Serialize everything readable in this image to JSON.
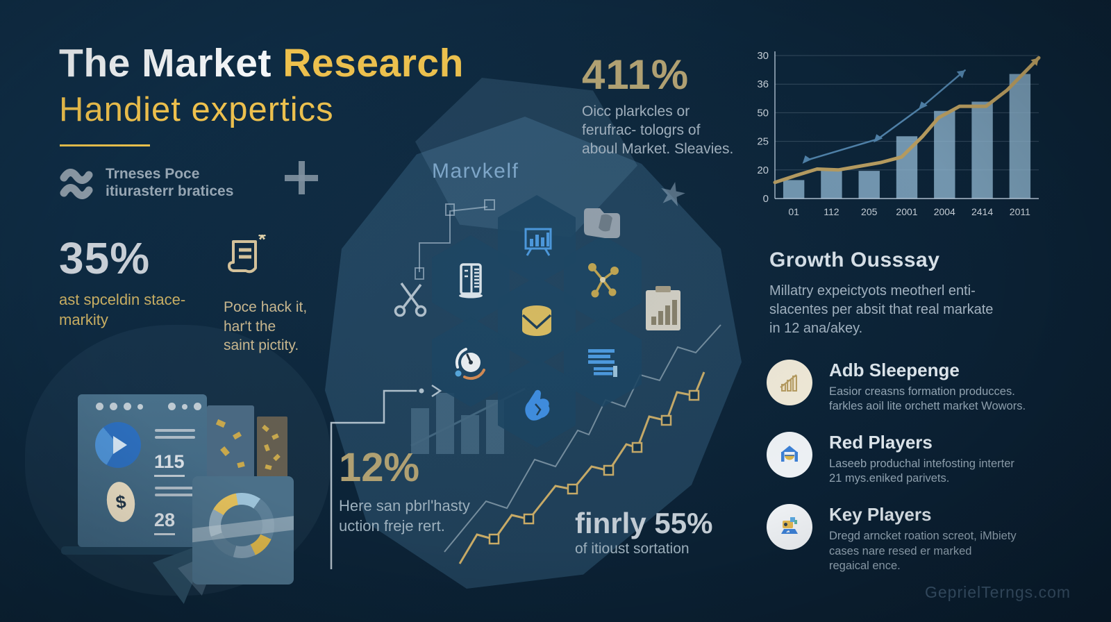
{
  "colors": {
    "background": "#0c2438",
    "accent_yellow": "#eec14d",
    "stat_gold": "#b2a171",
    "stat_silver": "#c9cfd6",
    "body_gray": "#a3b1bd",
    "bar_blue": "#8fb6cf",
    "line_gold": "#b59a5e",
    "line_blue": "#4f80a7"
  },
  "header": {
    "title_white": "The Market",
    "title_accent": "Research",
    "subtitle": "Handiet expertics",
    "brand": {
      "name_line1": "Trneses Poce",
      "name_line2": "itiurasterr bratices"
    }
  },
  "stats": {
    "pct411": {
      "value": "411%",
      "desc": "Oicc plarkcles or\nferufrac- tologrs of\naboul Market. Sleavies."
    },
    "pct35": {
      "value": "35%",
      "desc": "ast spceldin stace-\nmarkity"
    },
    "doc_note": "Poce hack it,\nhar't the\nsaint pictity.",
    "pct12": {
      "value": "12%",
      "desc": "Here san pbrl'hasty\nuction freje rert."
    },
    "pct55": {
      "value": "finrly 55%",
      "desc": "of itioust sortation"
    }
  },
  "center": {
    "label": "Marvkelf"
  },
  "growth_summary": {
    "title": "Growth Ousssay",
    "body": "Millatry expeictyots  meotherl enti-\nslacentes per absit that real markate\nin 12 ana/akey."
  },
  "players": [
    {
      "icon": "bar-growth-icon",
      "title": "Adb Sleepenge",
      "desc": "Easior creasns formation producces.\nfarkles aoil lite orchett market Wowors."
    },
    {
      "icon": "home-banner-icon",
      "title": "Red Players",
      "desc": "Laseeb produchal intefosting interter\n21 mys.eniked parivets."
    },
    {
      "icon": "projector-icon",
      "title": "Key Players",
      "desc": "Dregd arncket roation screot, iMbiety\ncases nare resed er marked\nregaical ence."
    }
  ],
  "illustration": {
    "metric1": "115",
    "metric2": "28",
    "currency": "$"
  },
  "watermark": "GeprielTerngs.com",
  "chart_data": {
    "type": "bar",
    "title": "",
    "xlabel": "",
    "ylabel": "",
    "categories": [
      "01",
      "112",
      "205",
      "2001",
      "2004",
      "2414",
      "2011"
    ],
    "y_tick_labels": [
      "30",
      "36",
      "50",
      "25",
      "20",
      "0"
    ],
    "ylim": [
      0,
      31
    ],
    "grid": true,
    "legend": null,
    "series": [
      {
        "name": "volume-bars",
        "type": "bar",
        "color": "#8fb6cf",
        "values": [
          4,
          6,
          6,
          13.5,
          19,
          21,
          27
        ]
      },
      {
        "name": "trend-gold",
        "type": "line",
        "color": "#b59a5e",
        "width": 5,
        "markers": false,
        "points": [
          [
            0,
            3.5
          ],
          [
            0.08,
            5
          ],
          [
            0.16,
            6.4
          ],
          [
            0.24,
            6.2
          ],
          [
            0.32,
            7
          ],
          [
            0.4,
            7.8
          ],
          [
            0.48,
            9
          ],
          [
            0.56,
            13.5
          ],
          [
            0.62,
            17.5
          ],
          [
            0.7,
            20
          ],
          [
            0.8,
            20
          ],
          [
            0.88,
            23.5
          ],
          [
            1,
            30.5
          ]
        ]
      },
      {
        "name": "trend-blue",
        "type": "line",
        "color": "#4f80a7",
        "width": 2.5,
        "markers": true,
        "points": [
          [
            0.12,
            8.3
          ],
          [
            0.39,
            12.9
          ],
          [
            0.56,
            20
          ],
          [
            0.72,
            27.8
          ]
        ]
      }
    ]
  }
}
